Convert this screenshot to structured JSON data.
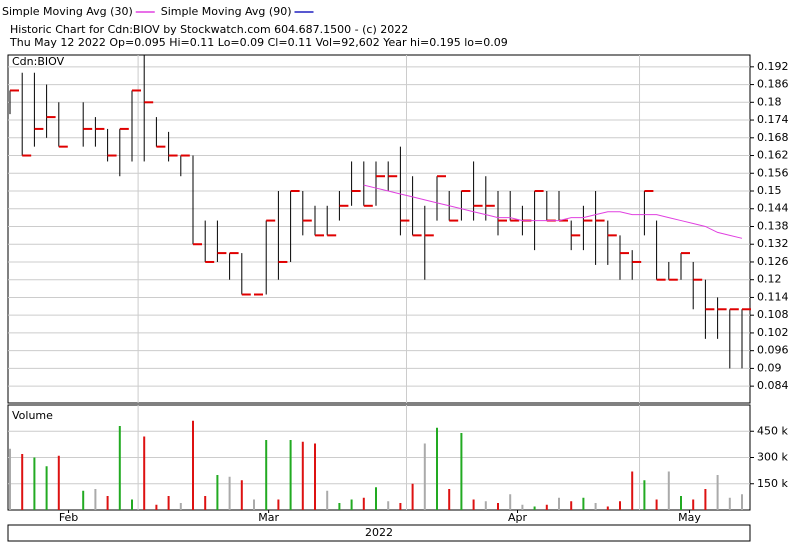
{
  "header": {
    "title": "Historic Chart for Cdn:BIOV by Stockwatch.com 604.687.1500 - (c) 2022",
    "subtitle": "Thu May 12 2022  Op=0.095  Hi=0.11  Lo=0.09  Cl=0.11  Vol=92,602  Year hi=0.195  lo=0.09",
    "year": "2022"
  },
  "chart_data": [
    {
      "type": "ohlc",
      "label": "Cdn:BIOV",
      "categories": [
        null,
        null,
        null,
        null,
        null,
        null,
        null,
        null,
        null,
        null,
        null,
        null,
        null,
        null,
        null,
        null,
        null,
        null,
        null,
        null,
        null,
        null,
        null,
        null,
        null,
        null,
        null,
        null,
        null,
        null,
        null,
        null,
        null,
        null,
        null,
        null,
        null,
        null,
        null,
        null,
        null,
        null,
        null,
        null,
        null,
        null,
        null,
        null,
        null,
        null,
        null,
        null,
        null,
        null,
        null,
        null,
        null,
        null,
        null,
        null,
        null
      ],
      "high": [
        0.184,
        0.19,
        0.19,
        0.186,
        0.18,
        null,
        0.18,
        0.175,
        0.171,
        0.171,
        0.184,
        0.196,
        0.175,
        0.17,
        0.162,
        0.162,
        0.14,
        0.14,
        0.129,
        0.129,
        0.115,
        0.14,
        0.15,
        0.15,
        0.15,
        0.145,
        0.145,
        0.15,
        0.16,
        0.16,
        0.16,
        0.16,
        0.165,
        0.155,
        0.145,
        0.155,
        0.15,
        0.15,
        0.16,
        0.155,
        0.15,
        0.15,
        0.145,
        0.15,
        0.15,
        0.15,
        0.14,
        0.145,
        0.15,
        0.14,
        0.135,
        0.13,
        0.15,
        0.14,
        0.126,
        0.129,
        0.126,
        0.12,
        0.114,
        0.11,
        0.11
      ],
      "low": [
        0.176,
        0.162,
        0.165,
        0.168,
        0.165,
        null,
        0.165,
        0.165,
        0.16,
        0.155,
        0.16,
        0.16,
        0.165,
        0.16,
        0.155,
        0.132,
        0.126,
        0.126,
        0.12,
        0.115,
        0.115,
        0.115,
        0.12,
        0.126,
        0.135,
        0.135,
        0.135,
        0.14,
        0.145,
        0.145,
        0.145,
        0.15,
        0.135,
        0.135,
        0.12,
        0.14,
        0.14,
        0.14,
        0.14,
        0.14,
        0.135,
        0.14,
        0.135,
        0.13,
        0.14,
        0.14,
        0.13,
        0.13,
        0.125,
        0.125,
        0.12,
        0.12,
        0.135,
        0.12,
        0.12,
        0.12,
        0.11,
        0.1,
        0.1,
        0.09,
        0.09
      ],
      "close": [
        0.184,
        0.162,
        0.171,
        0.175,
        0.165,
        null,
        0.171,
        0.171,
        0.162,
        0.171,
        0.184,
        0.18,
        0.165,
        0.162,
        0.162,
        0.132,
        0.126,
        0.129,
        0.129,
        0.115,
        0.115,
        0.14,
        0.126,
        0.15,
        0.14,
        0.135,
        0.135,
        0.145,
        0.15,
        0.145,
        0.155,
        0.155,
        0.14,
        0.135,
        0.135,
        0.155,
        0.14,
        0.15,
        0.145,
        0.145,
        0.14,
        0.14,
        0.14,
        0.15,
        0.14,
        0.14,
        0.135,
        0.14,
        0.14,
        0.135,
        0.129,
        0.126,
        0.15,
        0.12,
        0.12,
        0.129,
        0.12,
        0.11,
        0.11,
        0.11,
        0.11
      ],
      "bar_color": "#000000",
      "close_color": "#e00000",
      "series": [
        {
          "name": "Simple Moving Avg (30)",
          "color": "#e040e0",
          "values": [
            null,
            null,
            null,
            null,
            null,
            null,
            null,
            null,
            null,
            null,
            null,
            null,
            null,
            null,
            null,
            null,
            null,
            null,
            null,
            null,
            null,
            null,
            null,
            null,
            null,
            null,
            null,
            null,
            null,
            0.152,
            0.151,
            0.15,
            0.149,
            0.148,
            0.147,
            0.146,
            0.145,
            0.144,
            0.143,
            0.142,
            0.141,
            0.141,
            0.14,
            0.14,
            0.14,
            0.14,
            0.141,
            0.141,
            0.142,
            0.143,
            0.143,
            0.142,
            0.142,
            0.142,
            0.141,
            0.14,
            0.139,
            0.138,
            0.136,
            0.135,
            0.134
          ]
        },
        {
          "name": "Simple Moving Avg (90)",
          "color": "#2020c0",
          "values": [
            null,
            null,
            null,
            null,
            null,
            null,
            null,
            null,
            null,
            null,
            null,
            null,
            null,
            null,
            null,
            null,
            null,
            null,
            null,
            null,
            null,
            null,
            null,
            null,
            null,
            null,
            null,
            null,
            null,
            null,
            null,
            null,
            null,
            null,
            null,
            null,
            null,
            null,
            null,
            null,
            null,
            null,
            null,
            null,
            null,
            null,
            null,
            null,
            null,
            null,
            null,
            null,
            null,
            null,
            null,
            null,
            null,
            null,
            null,
            null,
            null
          ]
        }
      ],
      "ylim": [
        0.0783,
        0.196
      ],
      "yticks": [
        0.084,
        0.09,
        0.096,
        0.102,
        0.108,
        0.114,
        0.12,
        0.126,
        0.132,
        0.138,
        0.144,
        0.15,
        0.156,
        0.162,
        0.168,
        0.174,
        0.18,
        0.186,
        0.192
      ],
      "grid": true
    },
    {
      "type": "volume",
      "label": "Volume",
      "values": [
        350000,
        320000,
        300000,
        250000,
        310000,
        null,
        110000,
        120000,
        80000,
        480000,
        60000,
        420000,
        30000,
        80000,
        40000,
        510000,
        80000,
        200000,
        190000,
        170000,
        60000,
        400000,
        60000,
        400000,
        390000,
        380000,
        110000,
        40000,
        60000,
        70000,
        130000,
        50000,
        40000,
        150000,
        380000,
        470000,
        120000,
        440000,
        60000,
        50000,
        40000,
        90000,
        30000,
        20000,
        30000,
        70000,
        50000,
        70000,
        40000,
        20000,
        50000,
        220000,
        170000,
        60000,
        220000,
        80000,
        60000,
        120000,
        200000,
        70000,
        90000
      ],
      "up_color": "#22aa22",
      "down_color": "#dd1111",
      "flat_color": "#aaaaaa",
      "ylim": [
        0,
        600000
      ],
      "yticks": [
        {
          "value": 150000,
          "label": "150 k"
        },
        {
          "value": 300000,
          "label": "300 k"
        },
        {
          "value": 450000,
          "label": "450 k"
        }
      ],
      "xticks": [
        {
          "value": 4.8,
          "label": "Feb"
        },
        {
          "value": 21.2,
          "label": "Mar"
        },
        {
          "value": 41.6,
          "label": "Apr"
        },
        {
          "value": 55.7,
          "label": "May"
        }
      ],
      "xgrid": [
        10.5,
        32.5,
        51.6
      ],
      "grid": true
    }
  ]
}
